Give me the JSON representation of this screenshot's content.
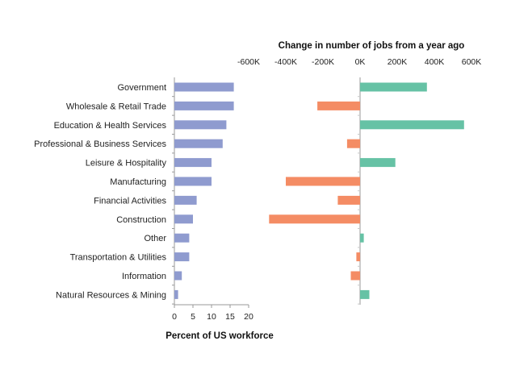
{
  "chart_data": [
    {
      "type": "bar",
      "orientation": "horizontal",
      "xlabel": "Percent of US workforce",
      "xlim": [
        0,
        20
      ],
      "xticks": [
        "0",
        "5",
        "10",
        "15",
        "20"
      ],
      "bar_color": "#8f9bcf",
      "categories": [
        "Government",
        "Wholesale & Retail Trade",
        "Education & Health Services",
        "Professional & Business Services",
        "Leisure & Hospitality",
        "Manufacturing",
        "Financial Activities",
        "Construction",
        "Other",
        "Transportation & Utilities",
        "Information",
        "Natural Resources & Mining"
      ],
      "values": [
        16,
        16,
        14,
        13,
        10,
        10,
        6,
        5,
        4,
        4,
        2,
        1
      ]
    },
    {
      "type": "bar",
      "orientation": "horizontal",
      "title": "Change in number of jobs from a year ago",
      "xlim": [
        -600000,
        600000
      ],
      "xticks": [
        "-600K",
        "-400K",
        "-200K",
        "0K",
        "200K",
        "400K",
        "600K"
      ],
      "positive_color": "#66c2a5",
      "negative_color": "#f48c64",
      "categories": [
        "Government",
        "Wholesale & Retail Trade",
        "Education & Health Services",
        "Professional & Business Services",
        "Leisure & Hospitality",
        "Manufacturing",
        "Financial Activities",
        "Construction",
        "Other",
        "Transportation & Utilities",
        "Information",
        "Natural Resources & Mining"
      ],
      "values": [
        360000,
        -230000,
        560000,
        -70000,
        190000,
        -400000,
        -120000,
        -490000,
        20000,
        -20000,
        -50000,
        50000
      ]
    }
  ]
}
